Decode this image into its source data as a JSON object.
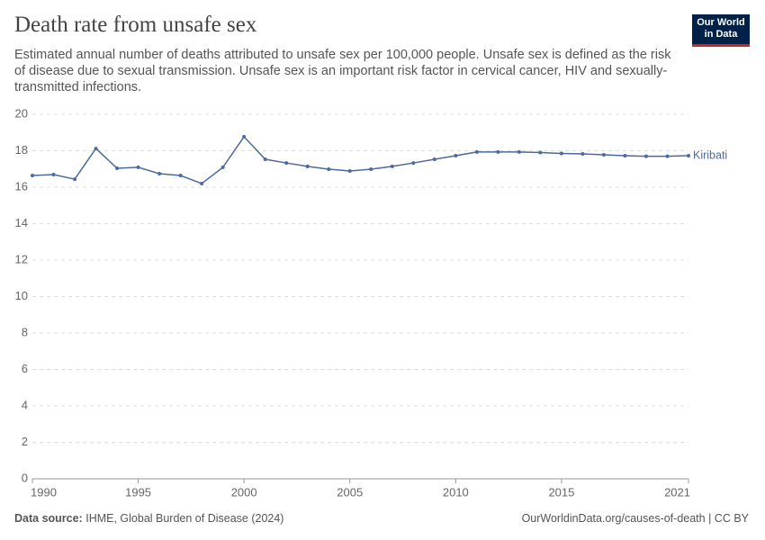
{
  "chart_data": {
    "type": "line",
    "title": "Death rate from unsafe sex",
    "subtitle": "Estimated annual number of deaths attributed to unsafe sex per 100,000 people. Unsafe sex is defined as the risk of disease due to sexual transmission. Unsafe sex is an important risk factor in cervical cancer, HIV and sexually-transmitted infections.",
    "logo": [
      "Our World",
      "in Data"
    ],
    "source_label": "Data source:",
    "source": "IHME, Global Burden of Disease (2024)",
    "footer_right": "OurWorldinData.org/causes-of-death | CC BY",
    "x": [
      1990,
      1991,
      1992,
      1993,
      1994,
      1995,
      1996,
      1997,
      1998,
      1999,
      2000,
      2001,
      2002,
      2003,
      2004,
      2005,
      2006,
      2007,
      2008,
      2009,
      2010,
      2011,
      2012,
      2013,
      2014,
      2015,
      2016,
      2017,
      2018,
      2019,
      2020,
      2021
    ],
    "series": [
      {
        "name": "Kiribati",
        "color": "#4c6a9c",
        "values": [
          16.64,
          16.69,
          16.44,
          18.12,
          17.04,
          17.09,
          16.74,
          16.64,
          16.2,
          17.09,
          18.77,
          17.53,
          17.33,
          17.14,
          16.99,
          16.89,
          16.99,
          17.14,
          17.33,
          17.53,
          17.73,
          17.93,
          17.93,
          17.93,
          17.9,
          17.85,
          17.83,
          17.78,
          17.73,
          17.7,
          17.7,
          17.73
        ]
      }
    ],
    "xlim": [
      1990,
      2021
    ],
    "xticks": [
      1990,
      1995,
      2000,
      2005,
      2010,
      2015,
      2021
    ],
    "ylim": [
      0,
      20
    ],
    "yticks": [
      0,
      2,
      4,
      6,
      8,
      10,
      12,
      14,
      16,
      18,
      20
    ],
    "grid": true
  }
}
